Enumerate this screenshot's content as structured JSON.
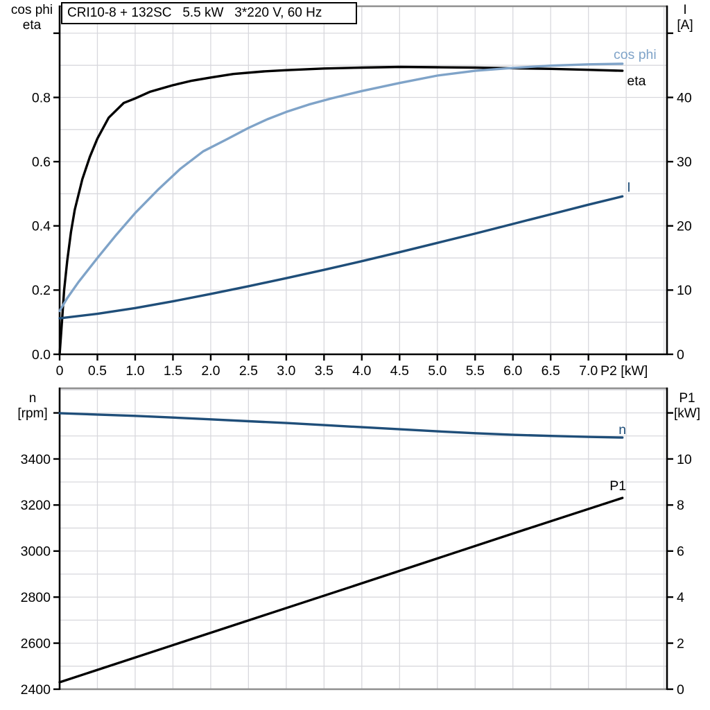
{
  "title": "CRI10-8 + 132SC   5.5 kW   3*220 V, 60 Hz",
  "colors": {
    "black": "#000000",
    "light_blue": "#7FA3C8",
    "dark_blue": "#1F4E79",
    "grid": "#D8D8DD",
    "frame_gray": "#8F8F8F"
  },
  "chart_data": [
    {
      "type": "line",
      "id": "motor-performance-top",
      "x_axis": {
        "label": "P2 [kW]",
        "range": [
          0,
          8.04
        ],
        "grid_step": 0.5,
        "tick_values": [
          0,
          0.5,
          1,
          1.5,
          2,
          2.5,
          3,
          3.5,
          4,
          4.5,
          5,
          5.5,
          6,
          6.5,
          7
        ],
        "tick_labels": [
          "0",
          "0.5",
          "1.0",
          "1.5",
          "2.0",
          "2.5",
          "3.0",
          "3.5",
          "4.0",
          "4.5",
          "5.0",
          "5.5",
          "6.0",
          "6.5",
          "7.0"
        ],
        "unlabeled_ticks": [
          7.5
        ]
      },
      "left_axis": {
        "header_lines": [
          "cos phi",
          "eta"
        ],
        "range": [
          0,
          1.084
        ],
        "grid_step": 0.1,
        "tick_values": [
          0,
          0.2,
          0.4,
          0.6,
          0.8
        ],
        "tick_labels": [
          "0.0",
          "0.2",
          "0.4",
          "0.6",
          "0.8"
        ],
        "unlabeled_ticks": [
          1.0
        ]
      },
      "right_axis": {
        "header_lines": [
          "I",
          "[A]"
        ],
        "range": [
          0,
          54.2
        ],
        "tick_values": [
          0,
          10,
          20,
          30,
          40
        ],
        "tick_labels": [
          "0",
          "10",
          "20",
          "30",
          "40"
        ],
        "unlabeled_ticks": [
          50
        ]
      },
      "series": [
        {
          "name": "eta",
          "axis": "left",
          "color": "#000000",
          "label": {
            "text": "eta",
            "x": 7.76,
            "y": 0.838,
            "anchor": "end",
            "color": "#000000"
          },
          "points": [
            [
              0,
              0
            ],
            [
              0.03,
              0.1
            ],
            [
              0.06,
              0.2
            ],
            [
              0.1,
              0.29
            ],
            [
              0.15,
              0.38
            ],
            [
              0.2,
              0.45
            ],
            [
              0.3,
              0.545
            ],
            [
              0.4,
              0.615
            ],
            [
              0.5,
              0.672
            ],
            [
              0.65,
              0.737
            ],
            [
              0.85,
              0.783
            ],
            [
              1.0,
              0.797
            ],
            [
              1.2,
              0.818
            ],
            [
              1.5,
              0.838
            ],
            [
              1.75,
              0.852
            ],
            [
              2.0,
              0.862
            ],
            [
              2.3,
              0.873
            ],
            [
              2.7,
              0.881
            ],
            [
              3.0,
              0.885
            ],
            [
              3.5,
              0.89
            ],
            [
              4.0,
              0.893
            ],
            [
              4.5,
              0.895
            ],
            [
              5.0,
              0.894
            ],
            [
              5.5,
              0.893
            ],
            [
              6.0,
              0.891
            ],
            [
              6.5,
              0.889
            ],
            [
              7.0,
              0.886
            ],
            [
              7.45,
              0.883
            ]
          ]
        },
        {
          "name": "cos phi",
          "axis": "left",
          "color": "#7FA3C8",
          "label": {
            "text": "cos phi",
            "x": 7.9,
            "y": 0.92,
            "anchor": "end",
            "color": "#7FA3C8"
          },
          "points": [
            [
              0,
              0.135
            ],
            [
              0.1,
              0.175
            ],
            [
              0.25,
              0.225
            ],
            [
              0.5,
              0.3
            ],
            [
              0.75,
              0.372
            ],
            [
              1.0,
              0.44
            ],
            [
              1.3,
              0.512
            ],
            [
              1.6,
              0.578
            ],
            [
              1.9,
              0.632
            ],
            [
              2.2,
              0.668
            ],
            [
              2.5,
              0.705
            ],
            [
              2.75,
              0.732
            ],
            [
              3.0,
              0.755
            ],
            [
              3.3,
              0.778
            ],
            [
              3.6,
              0.797
            ],
            [
              4.0,
              0.82
            ],
            [
              4.5,
              0.845
            ],
            [
              5.0,
              0.868
            ],
            [
              5.5,
              0.883
            ],
            [
              6.0,
              0.892
            ],
            [
              6.5,
              0.899
            ],
            [
              7.0,
              0.903
            ],
            [
              7.45,
              0.905
            ]
          ]
        },
        {
          "name": "I",
          "axis": "right",
          "color": "#1F4E79",
          "label": {
            "text": "I",
            "x": 7.51,
            "y": 25.3,
            "anchor": "start",
            "color": "#1F4E79"
          },
          "points": [
            [
              0,
              5.6
            ],
            [
              0.5,
              6.3
            ],
            [
              1.0,
              7.2
            ],
            [
              1.5,
              8.25
            ],
            [
              2.0,
              9.4
            ],
            [
              2.5,
              10.6
            ],
            [
              3.0,
              11.85
            ],
            [
              3.5,
              13.15
            ],
            [
              4.0,
              14.5
            ],
            [
              4.5,
              15.9
            ],
            [
              5.0,
              17.35
            ],
            [
              5.5,
              18.8
            ],
            [
              6.0,
              20.3
            ],
            [
              6.5,
              21.8
            ],
            [
              7.0,
              23.3
            ],
            [
              7.45,
              24.6
            ]
          ]
        }
      ]
    },
    {
      "type": "line",
      "id": "speed-power-bottom",
      "x_axis": {
        "label": "",
        "range": [
          0,
          8.04
        ],
        "grid_step": 0.5,
        "tick_values": [],
        "tick_labels": [],
        "unlabeled_ticks": []
      },
      "left_axis": {
        "header_lines": [
          "n",
          "[rpm]"
        ],
        "range": [
          2400,
          3707
        ],
        "grid_step": 100,
        "tick_values": [
          2400,
          2600,
          2800,
          3000,
          3200,
          3400
        ],
        "tick_labels": [
          "2400",
          "2600",
          "2800",
          "3000",
          "3200",
          "3400"
        ],
        "unlabeled_ticks": [
          3600
        ]
      },
      "right_axis": {
        "header_lines": [
          "P1",
          "[kW]"
        ],
        "range": [
          0,
          13.07
        ],
        "tick_values": [
          0,
          2,
          4,
          6,
          8,
          10
        ],
        "tick_labels": [
          "0",
          "2",
          "4",
          "6",
          "8",
          "10"
        ],
        "unlabeled_ticks": [
          12
        ]
      },
      "series": [
        {
          "name": "n",
          "axis": "left",
          "color": "#1F4E79",
          "label": {
            "text": "n",
            "x": 7.5,
            "y": 3508,
            "anchor": "end",
            "color": "#1F4E79"
          },
          "points": [
            [
              0,
              3599
            ],
            [
              0.5,
              3593
            ],
            [
              1.0,
              3587
            ],
            [
              1.5,
              3580
            ],
            [
              2.0,
              3572
            ],
            [
              2.5,
              3564
            ],
            [
              3.0,
              3556
            ],
            [
              3.5,
              3547
            ],
            [
              4.0,
              3538
            ],
            [
              4.5,
              3529
            ],
            [
              5.0,
              3520
            ],
            [
              5.5,
              3512
            ],
            [
              6.0,
              3505
            ],
            [
              6.5,
              3500
            ],
            [
              7.0,
              3496
            ],
            [
              7.45,
              3493
            ]
          ]
        },
        {
          "name": "P1",
          "axis": "right",
          "color": "#000000",
          "label": {
            "text": "P1",
            "x": 7.5,
            "y": 8.65,
            "anchor": "end",
            "color": "#000000"
          },
          "points": [
            [
              0,
              0.3
            ],
            [
              2.0,
              2.45
            ],
            [
              4.0,
              4.6
            ],
            [
              6.0,
              6.76
            ],
            [
              7.45,
              8.31
            ]
          ]
        }
      ]
    }
  ]
}
